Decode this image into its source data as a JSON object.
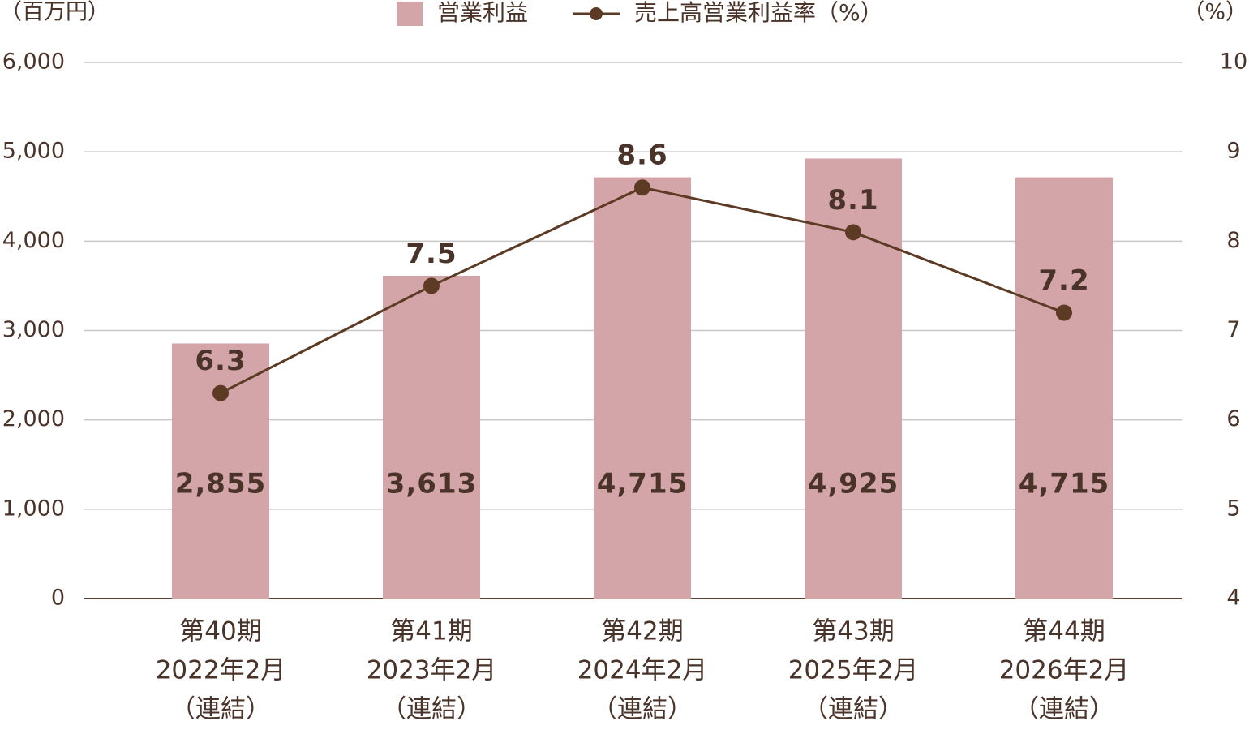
{
  "chart_data": {
    "type": "bar-line",
    "y_unit_label": "（百万円）",
    "y2_unit_label": "（%）",
    "categories": [
      [
        "第40期",
        "2022年2月",
        "（連結）"
      ],
      [
        "第41期",
        "2023年2月",
        "（連結）"
      ],
      [
        "第42期",
        "2024年2月",
        "（連結）"
      ],
      [
        "第43期",
        "2025年2月",
        "（連結）"
      ],
      [
        "第44期",
        "2026年2月",
        "（連結）"
      ]
    ],
    "series": [
      {
        "name": "営業利益",
        "type": "bar",
        "color": "#d4a5a8",
        "values": [
          2855,
          3613,
          4715,
          4925,
          4715
        ],
        "value_labels": [
          "2,855",
          "3,613",
          "4,715",
          "4,925",
          "4,715"
        ]
      },
      {
        "name": "売上高営業利益率（%）",
        "type": "line",
        "axis": "y2",
        "color": "#5c3a24",
        "values": [
          6.3,
          7.5,
          8.6,
          8.1,
          7.2
        ]
      }
    ],
    "ylim": [
      0,
      6000
    ],
    "yticks": [
      0,
      {
        "value": 1000,
        "label": "1,000"
      },
      {
        "value": 2000,
        "label": "2,000"
      },
      {
        "value": 3000,
        "label": "3,000"
      },
      {
        "value": 4000,
        "label": "4,000"
      },
      {
        "value": 5000,
        "label": "5,000"
      },
      {
        "value": 6000,
        "label": "6,000"
      }
    ],
    "y2lim": [
      4,
      10
    ],
    "y2ticks": [
      4,
      5,
      6,
      7,
      8,
      9,
      10
    ],
    "grid": true
  }
}
